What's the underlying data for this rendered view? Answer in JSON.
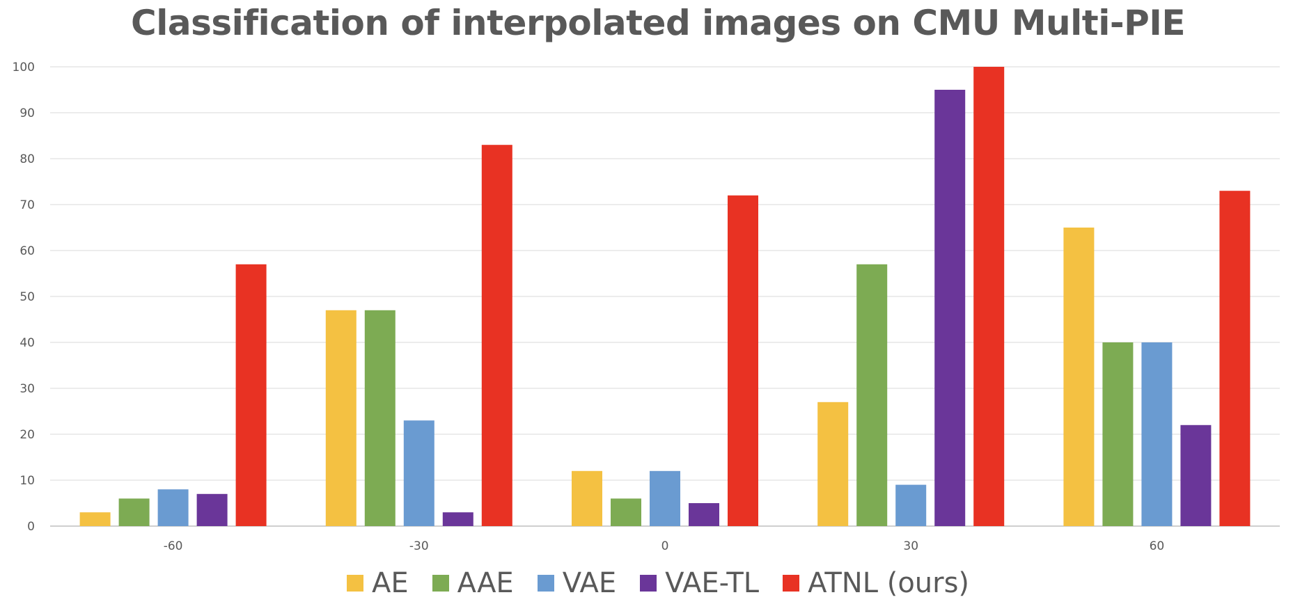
{
  "chart_data": {
    "type": "bar",
    "title": "Classification of interpolated images on CMU Multi-PIE",
    "xlabel": "",
    "ylabel": "",
    "categories": [
      "-60",
      "-30",
      "0",
      "30",
      "60"
    ],
    "ylim": [
      0,
      100
    ],
    "yticks": [
      0,
      10,
      20,
      30,
      40,
      50,
      60,
      70,
      80,
      90,
      100
    ],
    "grid": true,
    "legend_position": "bottom",
    "series": [
      {
        "name": "AE",
        "color": "#F4C142",
        "values": [
          3,
          47,
          12,
          27,
          65
        ]
      },
      {
        "name": "AAE",
        "color": "#7DAB53",
        "values": [
          6,
          47,
          6,
          57,
          40
        ]
      },
      {
        "name": "VAE",
        "color": "#6A9BD1",
        "values": [
          8,
          23,
          12,
          9,
          40
        ]
      },
      {
        "name": "VAE-TL",
        "color": "#6A3699",
        "values": [
          7,
          3,
          5,
          95,
          22
        ]
      },
      {
        "name": "ATNL (ours)",
        "color": "#E83223",
        "values": [
          57,
          83,
          72,
          100,
          73
        ]
      }
    ]
  }
}
